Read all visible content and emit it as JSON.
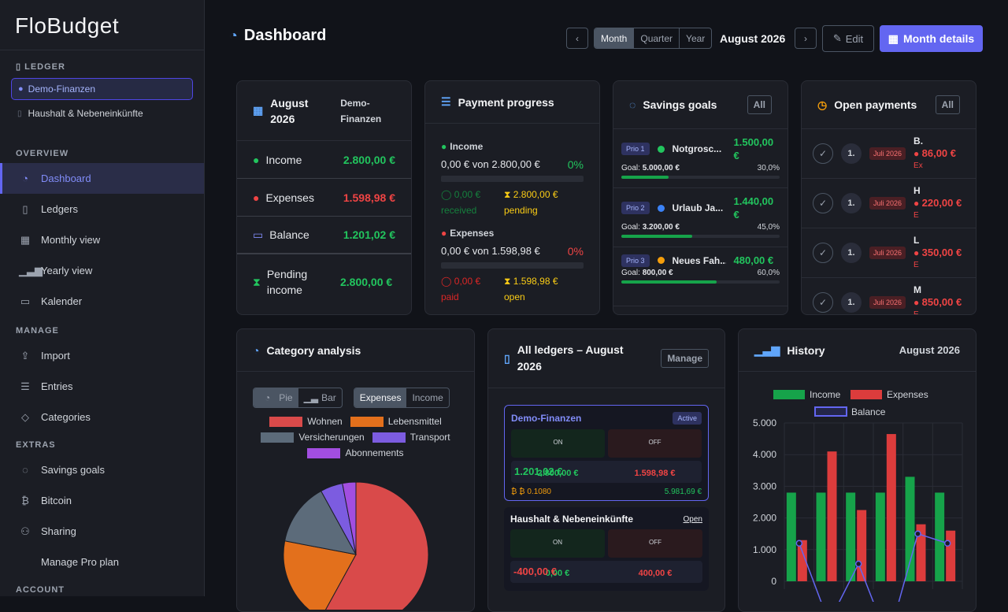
{
  "app": {
    "brand": "FloBudget"
  },
  "sidebar": {
    "ledger_section": "Ledger",
    "ledgers": [
      {
        "label": "Demo-Finanzen",
        "selected": true
      },
      {
        "label": "Haushalt & Nebeneinkünfte",
        "selected": false
      }
    ],
    "overview_section": "Overview",
    "overview_items": [
      {
        "label": "Dashboard",
        "icon": "gauge-icon"
      },
      {
        "label": "Ledgers",
        "icon": "book-icon"
      },
      {
        "label": "Monthly view",
        "icon": "calendar-icon"
      },
      {
        "label": "Yearly view",
        "icon": "bar-chart-icon"
      },
      {
        "label": "Kalender",
        "icon": "calendar-icon"
      }
    ],
    "manage_section": "Manage",
    "manage_items": [
      {
        "label": "Import",
        "icon": "upload-icon"
      },
      {
        "label": "Entries",
        "icon": "list-icon"
      },
      {
        "label": "Categories",
        "icon": "tag-icon"
      }
    ],
    "extras_section": "Extras",
    "extras_items": [
      {
        "label": "Savings goals",
        "icon": "piggy-bank-icon"
      },
      {
        "label": "Bitcoin",
        "icon": "bitcoin-icon"
      },
      {
        "label": "Sharing",
        "icon": "users-icon"
      },
      {
        "label": "Manage Pro plan",
        "icon": ""
      }
    ],
    "account_section": "Account"
  },
  "header": {
    "title": "Dashboard",
    "periods": [
      "Month",
      "Quarter",
      "Year"
    ],
    "active_period": "Month",
    "current_period": "August 2026",
    "edit_label": "Edit",
    "details_label": "Month details"
  },
  "summary": {
    "title": "August 2026",
    "ledger": "Demo-Finanzen",
    "rows": [
      {
        "label": "Income",
        "value": "2.800,00 €",
        "color": "#22c55e"
      },
      {
        "label": "Expenses",
        "value": "1.598,98 €",
        "color": "#ef4444"
      },
      {
        "label": "Balance",
        "value": "1.201,02 €",
        "color": "#22c55e"
      },
      {
        "label": "Pending income",
        "value": "2.800,00 €",
        "color": "#22c55e"
      }
    ]
  },
  "payment": {
    "title": "Payment progress",
    "income_label": "Income",
    "income_text": "0,00 € von 2.800,00 €",
    "income_pct": "0%",
    "income_received": "0,00 €",
    "received_label": "received",
    "income_pending": "2.800,00 €",
    "pending_label": "pending",
    "expenses_label": "Expenses",
    "expenses_text": "0,00 € von 1.598,98 €",
    "expenses_pct": "0%",
    "expenses_paid": "0,00 €",
    "paid_label": "paid",
    "expenses_open": "1.598,98 €",
    "open_label": "open"
  },
  "savings": {
    "title": "Savings goals",
    "all_label": "All",
    "goals": [
      {
        "prio": "Prio 1",
        "name": "Notgrosc...",
        "amount": "1.500,00 €",
        "goal_label": "Goal:",
        "goal": "5.000,00 €",
        "pct": "30,0%",
        "fill": 0.3,
        "dot": "#22c55e"
      },
      {
        "prio": "Prio 2",
        "name": "Urlaub Ja...",
        "amount": "1.440,00 €",
        "goal_label": "Goal:",
        "goal": "3.200,00 €",
        "pct": "45,0%",
        "fill": 0.45,
        "dot": "#3b82f6"
      },
      {
        "prio": "Prio 3",
        "name": "Neues Fah...",
        "amount": "480,00 €",
        "goal_label": "Goal:",
        "goal": "800,00 €",
        "pct": "60,0%",
        "fill": 0.6,
        "dot": "#f59e0b"
      }
    ]
  },
  "open_payments": {
    "title": "Open payments",
    "all_label": "All",
    "items": [
      {
        "num": "1.",
        "badge": "Juli 2026",
        "initial": "B.",
        "amount": "86,00 €",
        "sub": "Ex"
      },
      {
        "num": "1.",
        "badge": "Juli 2026",
        "initial": "H",
        "amount": "220,00 €",
        "sub": "E"
      },
      {
        "num": "1.",
        "badge": "Juli 2026",
        "initial": "L",
        "amount": "350,00 €",
        "sub": "E"
      },
      {
        "num": "1.",
        "badge": "Juli 2026",
        "initial": "M",
        "amount": "850,00 €",
        "sub": "E"
      }
    ]
  },
  "category": {
    "title": "Category analysis",
    "pie_label": "Pie",
    "bar_label": "Bar",
    "expenses_label": "Expenses",
    "income_label": "Income",
    "legend": [
      {
        "name": "Wohnen",
        "color": "#d94a4a"
      },
      {
        "name": "Lebensmittel",
        "color": "#e3701c"
      },
      {
        "name": "Versicherungen",
        "color": "#5c6b7a"
      },
      {
        "name": "Transport",
        "color": "#7c5ce0"
      },
      {
        "name": "Abonnements",
        "color": "#a24ee0"
      }
    ]
  },
  "all_ledgers": {
    "title": "All ledgers – August 2026",
    "manage_label": "Manage",
    "ledgers": [
      {
        "name": "Demo-Finanzen",
        "tag": "Active",
        "on_label": "ON",
        "on": "2.800,00 €",
        "off_label": "OFF",
        "off": "1.598,98 €",
        "balance": "1.201,02 €",
        "btc": "₿ ₿ 0.1080",
        "total": "5.981,69 €"
      },
      {
        "name": "Haushalt & Nebeneinkünfte",
        "tag": "Open",
        "on_label": "ON",
        "on": "0,00 €",
        "off_label": "OFF",
        "off": "400,00 €",
        "balance": "-400,00 €"
      }
    ]
  },
  "history": {
    "title": "History",
    "period": "August 2026"
  },
  "chart_data": [
    {
      "type": "pie",
      "title": "",
      "categories": [
        "Wohnen",
        "Lebensmittel",
        "Versicherungen",
        "Transport",
        "Abonnements"
      ],
      "values": [
        58,
        20,
        14,
        5,
        3
      ],
      "colors": [
        "#d94a4a",
        "#e3701c",
        "#5c6b7a",
        "#7c5ce0",
        "#a24ee0"
      ]
    },
    {
      "type": "bar",
      "title": "",
      "y_ticks": [
        "5.000",
        "4.000",
        "3.000",
        "2.000",
        "1.000",
        "0"
      ],
      "ylim": [
        0,
        5000
      ],
      "series": [
        {
          "name": "Income",
          "type": "bar",
          "color": "#16a34a",
          "values": [
            2800,
            2800,
            2800,
            2800,
            3300,
            2800
          ]
        },
        {
          "name": "Expenses",
          "type": "bar",
          "color": "#dc3c3c",
          "values": [
            1300,
            4100,
            2250,
            4650,
            1800,
            1600
          ]
        },
        {
          "name": "Balance",
          "type": "line",
          "color": "#6366f1",
          "values": [
            1200,
            -1300,
            550,
            -1850,
            1500,
            1200
          ]
        }
      ],
      "grid": true,
      "legend": "top"
    }
  ]
}
